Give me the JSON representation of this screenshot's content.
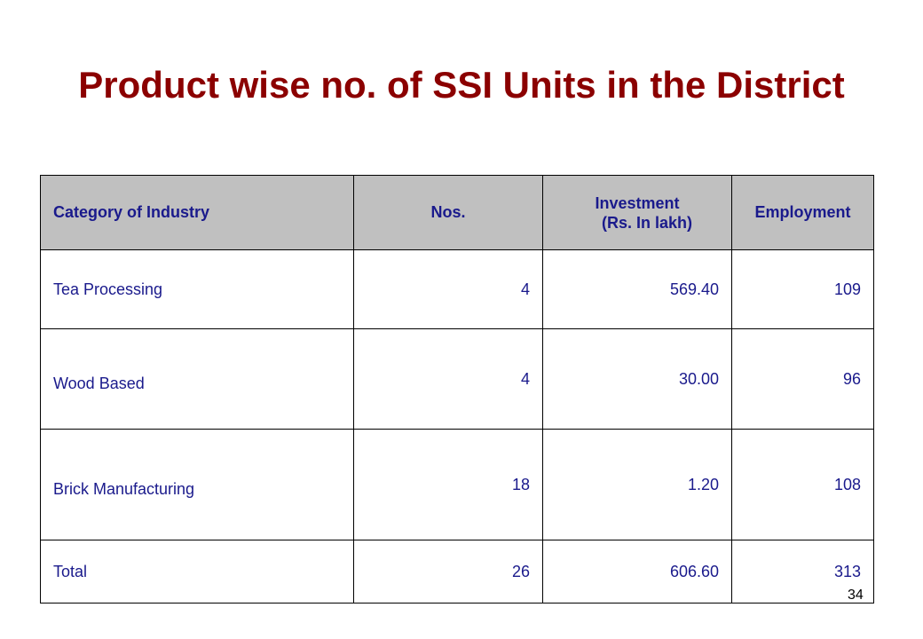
{
  "title": "Product wise no. of SSI Units in the District",
  "table": {
    "headers": {
      "category": "Category of Industry",
      "nos": "Nos.",
      "investment_line1": "Investment",
      "investment_line2": "(Rs. In lakh)",
      "employment": "Employment"
    },
    "rows": [
      {
        "category": "Tea Processing",
        "nos": "4",
        "investment": "569.40",
        "employment": "109"
      },
      {
        "category": "Wood Based",
        "nos": "4",
        "investment": "30.00",
        "employment": "96"
      },
      {
        "category": "Brick Manufacturing",
        "nos": "18",
        "investment": "1.20",
        "employment": "108"
      },
      {
        "category": "Total",
        "nos": "26",
        "investment": "606.60",
        "employment": "313"
      }
    ]
  },
  "page_number": "34",
  "colors": {
    "title": "#8b0000",
    "text": "#1a1a8c",
    "header_bg": "#c0c0c0"
  }
}
